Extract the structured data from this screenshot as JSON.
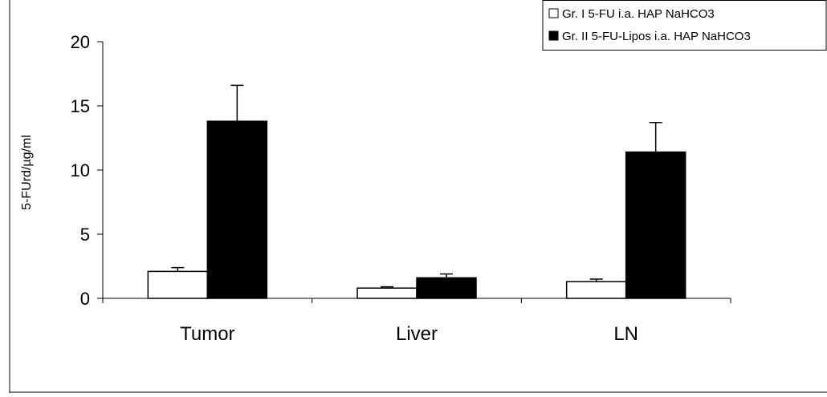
{
  "chart_data": {
    "type": "bar",
    "title": "",
    "xlabel": "",
    "ylabel": "5-FUrd/µg/ml",
    "ylim": [
      0,
      20
    ],
    "yticks": [
      0,
      5,
      10,
      15,
      20
    ],
    "categories": [
      "Tumor",
      "Liver",
      "LN"
    ],
    "series": [
      {
        "name": "Gr. I 5-FU i.a. HAP NaHCO3",
        "values": [
          2.1,
          0.8,
          1.3
        ],
        "errors": [
          0.3,
          0.1,
          0.2
        ],
        "color": "#ffffff"
      },
      {
        "name": "Gr. II 5-FU-Lipos i.a. HAP NaHCO3",
        "values": [
          13.8,
          1.6,
          11.4
        ],
        "errors": [
          2.8,
          0.3,
          2.3
        ],
        "color": "#000000"
      }
    ],
    "legend": "top-right",
    "grid": false
  }
}
